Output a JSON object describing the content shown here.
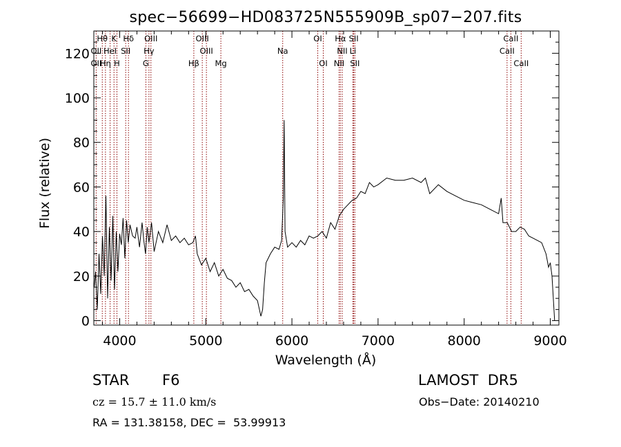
{
  "chart_data": {
    "type": "line",
    "title": "spec−56699−HD083725N555909B_sp07−207.fits",
    "xlabel": "Wavelength (Å)",
    "ylabel": "Flux (relative)",
    "xlim": [
      3700,
      9100
    ],
    "ylim": [
      -2,
      130
    ],
    "xticks": [
      4000,
      5000,
      6000,
      7000,
      8000,
      9000
    ],
    "yticks": [
      0,
      20,
      40,
      60,
      80,
      100,
      120
    ],
    "line_color": "#000000",
    "marker_color": "#8b0000",
    "series": [
      {
        "x": [
          3705,
          3720,
          3740,
          3760,
          3780,
          3800,
          3820,
          3840,
          3860,
          3880,
          3900,
          3920,
          3940,
          3960,
          3980,
          4000,
          4020,
          4040,
          4060,
          4080,
          4100,
          4120,
          4150,
          4180,
          4200,
          4230,
          4260,
          4280,
          4300,
          4320,
          4340,
          4370,
          4400,
          4450,
          4500,
          4550,
          4600,
          4650,
          4700,
          4750,
          4800,
          4850,
          4880,
          4900,
          4950,
          5000,
          5050,
          5100,
          5150,
          5200,
          5250,
          5300,
          5350,
          5400,
          5450,
          5500,
          5550,
          5600,
          5640,
          5660,
          5680,
          5700,
          5750,
          5800,
          5850,
          5880,
          5900,
          5910,
          5920,
          5950,
          6000,
          6050,
          6100,
          6150,
          6200,
          6250,
          6300,
          6350,
          6400,
          6450,
          6500,
          6550,
          6600,
          6650,
          6700,
          6750,
          6800,
          6850,
          6900,
          6950,
          7000,
          7100,
          7200,
          7300,
          7400,
          7500,
          7550,
          7600,
          7700,
          7800,
          7900,
          8000,
          8100,
          8200,
          8300,
          8400,
          8430,
          8450,
          8500,
          8550,
          8600,
          8650,
          8700,
          8750,
          8800,
          8850,
          8900,
          8950,
          8980,
          9000,
          9020,
          9050
        ],
        "y": [
          15,
          22,
          5,
          30,
          12,
          38,
          20,
          56,
          10,
          42,
          18,
          47,
          14,
          40,
          22,
          39,
          34,
          46,
          28,
          45,
          35,
          43,
          38,
          37,
          42,
          33,
          44,
          36,
          30,
          42,
          35,
          44,
          31,
          40,
          35,
          43,
          36,
          38,
          35,
          37,
          34,
          35,
          38,
          30,
          25,
          28,
          22,
          26,
          20,
          23,
          19,
          18,
          15,
          17,
          13,
          14,
          11,
          9,
          2,
          5,
          17,
          26,
          30,
          33,
          32,
          36,
          55,
          90,
          40,
          33,
          35,
          33,
          36,
          34,
          38,
          37,
          38,
          40,
          37,
          44,
          41,
          47,
          50,
          52,
          54,
          55,
          58,
          57,
          62,
          60,
          61,
          64,
          63,
          63,
          64,
          62,
          64,
          57,
          61,
          58,
          56,
          54,
          53,
          52,
          50,
          48,
          55,
          44,
          44,
          40,
          40,
          42,
          41,
          38,
          37,
          36,
          35,
          30,
          24,
          26,
          20,
          0
        ]
      }
    ],
    "spectral_lines": [
      {
        "label": "Hθ",
        "x": 3798,
        "row": 0
      },
      {
        "label": "K",
        "x": 3934,
        "row": 0
      },
      {
        "label": "Hδ",
        "x": 4102,
        "row": 0
      },
      {
        "label": "OIII",
        "x": 4363,
        "row": 0
      },
      {
        "label": "OIII",
        "x": 4959,
        "row": 0
      },
      {
        "label": "OI",
        "x": 6300,
        "row": 0
      },
      {
        "label": "Hα",
        "x": 6563,
        "row": 0
      },
      {
        "label": "SII",
        "x": 6717,
        "row": 0
      },
      {
        "label": "CaII",
        "x": 8542,
        "row": 0
      },
      {
        "label": "OII",
        "x": 3727,
        "row": 1
      },
      {
        "label": "HeI",
        "x": 3889,
        "row": 1
      },
      {
        "label": "SII",
        "x": 4070,
        "row": 1
      },
      {
        "label": "Hγ",
        "x": 4340,
        "row": 1
      },
      {
        "label": "OIII",
        "x": 5007,
        "row": 1
      },
      {
        "label": "Na",
        "x": 5893,
        "row": 1
      },
      {
        "label": "NII",
        "x": 6584,
        "row": 1
      },
      {
        "label": "Li",
        "x": 6708,
        "row": 1
      },
      {
        "label": "CaII",
        "x": 8498,
        "row": 1
      },
      {
        "label": "OII",
        "x": 3727,
        "row": 2
      },
      {
        "label": "Hη",
        "x": 3835,
        "row": 2
      },
      {
        "label": "H",
        "x": 3968,
        "row": 2
      },
      {
        "label": "G",
        "x": 4304,
        "row": 2
      },
      {
        "label": "Hβ",
        "x": 4861,
        "row": 2
      },
      {
        "label": "Mg",
        "x": 5175,
        "row": 2
      },
      {
        "label": "OI",
        "x": 6364,
        "row": 2
      },
      {
        "label": "NII",
        "x": 6548,
        "row": 2
      },
      {
        "label": "SII",
        "x": 6731,
        "row": 2
      },
      {
        "label": "CaII",
        "x": 8662,
        "row": 2
      }
    ]
  },
  "info": {
    "object_class": "STAR",
    "subclass": "F6",
    "survey": "LAMOST  DR5",
    "cz": "cz = 15.7 ± 11.0 km/s",
    "obs_date": "Obs−Date: 20140210",
    "coords": "RA = 131.38158, DEC =  53.99913"
  }
}
